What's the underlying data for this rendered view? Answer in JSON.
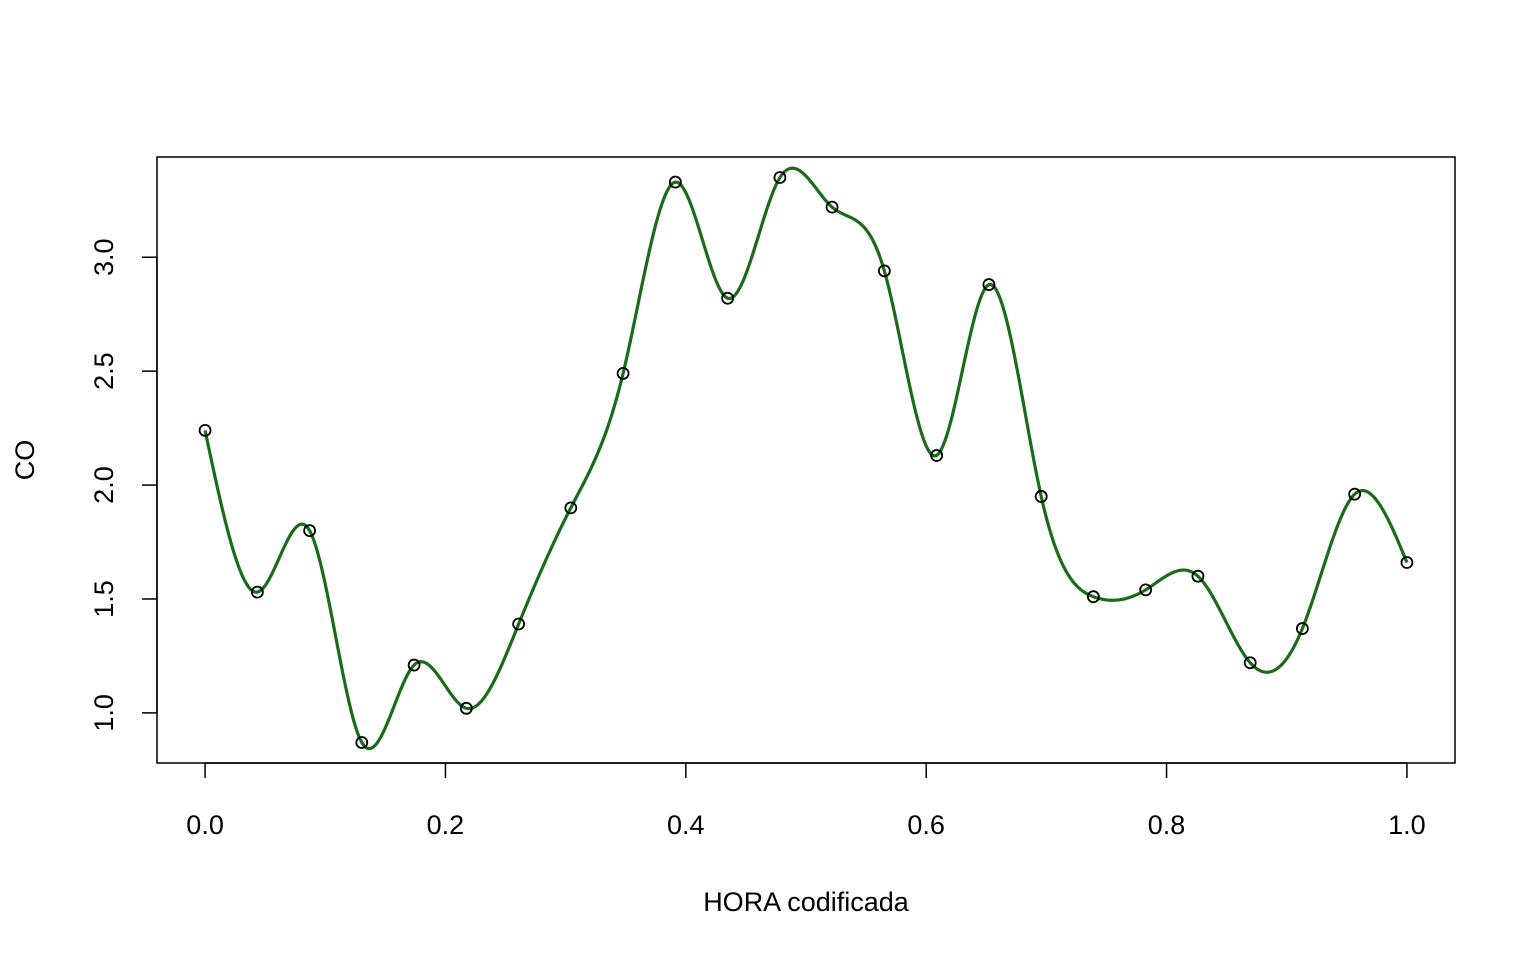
{
  "chart_data": {
    "type": "scatter",
    "xlabel": "HORA codificada",
    "ylabel": "CO",
    "xlim": [
      -0.04,
      1.04
    ],
    "ylim": [
      0.78,
      3.44
    ],
    "xticks": [
      0.0,
      0.2,
      0.4,
      0.6,
      0.8,
      1.0
    ],
    "xtick_labels": [
      "0.0",
      "0.2",
      "0.4",
      "0.6",
      "0.8",
      "1.0"
    ],
    "yticks": [
      1.0,
      1.5,
      2.0,
      2.5,
      3.0
    ],
    "ytick_labels": [
      "1.0",
      "1.5",
      "2.0",
      "2.5",
      "3.0"
    ],
    "grid": false,
    "series": [
      {
        "kind": "points",
        "marker": "open-circle",
        "color": "#000000",
        "x": [
          0.0,
          0.0435,
          0.087,
          0.1304,
          0.1739,
          0.2174,
          0.2609,
          0.3043,
          0.3478,
          0.3913,
          0.4348,
          0.4783,
          0.5217,
          0.5652,
          0.6087,
          0.6522,
          0.6957,
          0.7391,
          0.7826,
          0.8261,
          0.8696,
          0.913,
          0.9565,
          1.0
        ],
        "y": [
          2.24,
          1.53,
          1.8,
          0.87,
          1.21,
          1.02,
          1.39,
          1.9,
          2.49,
          3.33,
          2.82,
          3.35,
          3.22,
          2.94,
          2.13,
          2.88,
          1.95,
          1.51,
          1.54,
          1.6,
          1.22,
          1.37,
          1.96,
          1.66
        ]
      },
      {
        "kind": "smooth-curve",
        "color": "#1a6b1a"
      }
    ]
  }
}
